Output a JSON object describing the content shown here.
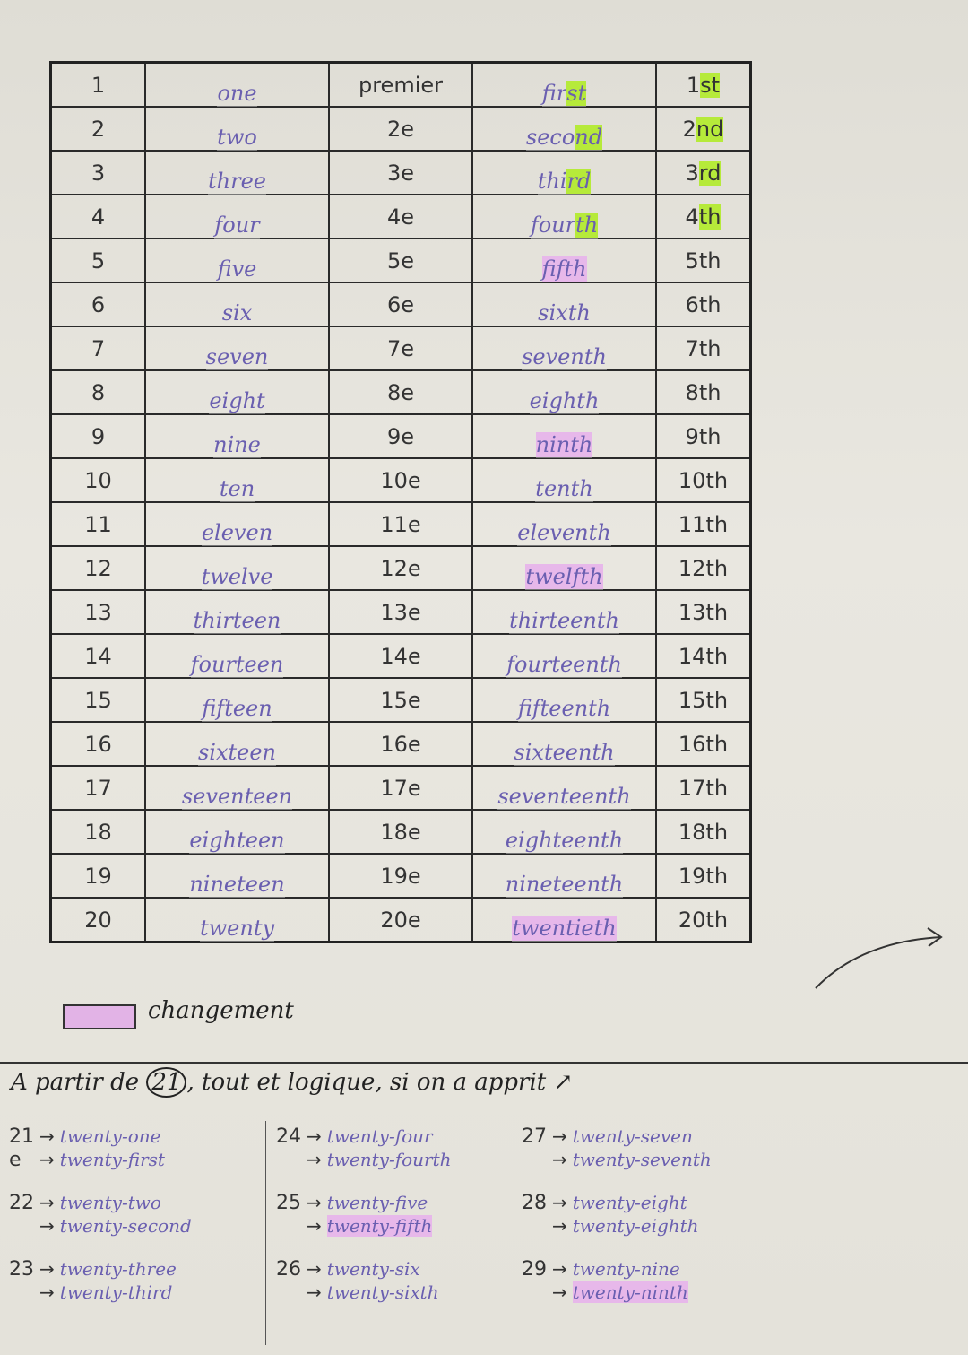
{
  "table": {
    "rows": [
      {
        "n": "1",
        "word": "one",
        "fr": "premier",
        "ord": "first",
        "ord_hl": "st",
        "ord_color": "green",
        "abbr_num": "1",
        "abbr_suf": "st",
        "abbr_hl": true
      },
      {
        "n": "2",
        "word": "two",
        "fr": "2e",
        "ord": "second",
        "ord_hl": "nd",
        "ord_color": "green",
        "abbr_num": "2",
        "abbr_suf": "nd",
        "abbr_hl": true
      },
      {
        "n": "3",
        "word": "three",
        "fr": "3e",
        "ord": "third",
        "ord_hl": "rd",
        "ord_color": "green",
        "abbr_num": "3",
        "abbr_suf": "rd",
        "abbr_hl": true
      },
      {
        "n": "4",
        "word": "four",
        "fr": "4e",
        "ord": "fourth",
        "ord_hl": "th",
        "ord_color": "green",
        "abbr_num": "4",
        "abbr_suf": "th",
        "abbr_hl": true
      },
      {
        "n": "5",
        "word": "five",
        "fr": "5e",
        "ord": "fifth",
        "ord_hl": "fifth",
        "ord_color": "purple",
        "abbr_num": "5",
        "abbr_suf": "th",
        "abbr_hl": false
      },
      {
        "n": "6",
        "word": "six",
        "fr": "6e",
        "ord": "sixth",
        "ord_hl": "",
        "ord_color": "",
        "abbr_num": "6",
        "abbr_suf": "th",
        "abbr_hl": false
      },
      {
        "n": "7",
        "word": "seven",
        "fr": "7e",
        "ord": "seventh",
        "ord_hl": "",
        "ord_color": "",
        "abbr_num": "7",
        "abbr_suf": "th",
        "abbr_hl": false
      },
      {
        "n": "8",
        "word": "eight",
        "fr": "8e",
        "ord": "eighth",
        "ord_hl": "",
        "ord_color": "",
        "abbr_num": "8",
        "abbr_suf": "th",
        "abbr_hl": false
      },
      {
        "n": "9",
        "word": "nine",
        "fr": "9e",
        "ord": "ninth",
        "ord_hl": "ninth",
        "ord_color": "purple",
        "abbr_num": "9",
        "abbr_suf": "th",
        "abbr_hl": false
      },
      {
        "n": "10",
        "word": "ten",
        "fr": "10e",
        "ord": "tenth",
        "ord_hl": "",
        "ord_color": "",
        "abbr_num": "10",
        "abbr_suf": "th",
        "abbr_hl": false
      },
      {
        "n": "11",
        "word": "eleven",
        "fr": "11e",
        "ord": "eleventh",
        "ord_hl": "",
        "ord_color": "",
        "abbr_num": "11",
        "abbr_suf": "th",
        "abbr_hl": false
      },
      {
        "n": "12",
        "word": "twelve",
        "fr": "12e",
        "ord": "twelfth",
        "ord_hl": "twelfth",
        "ord_color": "purple",
        "abbr_num": "12",
        "abbr_suf": "th",
        "abbr_hl": false
      },
      {
        "n": "13",
        "word": "thirteen",
        "fr": "13e",
        "ord": "thirteenth",
        "ord_hl": "",
        "ord_color": "",
        "abbr_num": "13",
        "abbr_suf": "th",
        "abbr_hl": false
      },
      {
        "n": "14",
        "word": "fourteen",
        "fr": "14e",
        "ord": "fourteenth",
        "ord_hl": "",
        "ord_color": "",
        "abbr_num": "14",
        "abbr_suf": "th",
        "abbr_hl": false
      },
      {
        "n": "15",
        "word": "fifteen",
        "fr": "15e",
        "ord": "fifteenth",
        "ord_hl": "",
        "ord_color": "",
        "abbr_num": "15",
        "abbr_suf": "th",
        "abbr_hl": false
      },
      {
        "n": "16",
        "word": "sixteen",
        "fr": "16e",
        "ord": "sixteenth",
        "ord_hl": "",
        "ord_color": "",
        "abbr_num": "16",
        "abbr_suf": "th",
        "abbr_hl": false
      },
      {
        "n": "17",
        "word": "seventeen",
        "fr": "17e",
        "ord": "seventeenth",
        "ord_hl": "",
        "ord_color": "",
        "abbr_num": "17",
        "abbr_suf": "th",
        "abbr_hl": false
      },
      {
        "n": "18",
        "word": "eighteen",
        "fr": "18e",
        "ord": "eighteenth",
        "ord_hl": "",
        "ord_color": "",
        "abbr_num": "18",
        "abbr_suf": "th",
        "abbr_hl": false
      },
      {
        "n": "19",
        "word": "nineteen",
        "fr": "19e",
        "ord": "nineteenth",
        "ord_hl": "",
        "ord_color": "",
        "abbr_num": "19",
        "abbr_suf": "th",
        "abbr_hl": false
      },
      {
        "n": "20",
        "word": "twenty",
        "fr": "20e",
        "ord": "twentieth",
        "ord_hl": "twentieth",
        "ord_color": "purple",
        "abbr_num": "20",
        "abbr_suf": "th",
        "abbr_hl": false
      }
    ]
  },
  "legend": {
    "label": "changement",
    "color": "#e2b3e6"
  },
  "intro": {
    "before": "A partir de",
    "circled": "21",
    "after": ", tout et logique, si on a apprit ↗"
  },
  "colors": {
    "green_highlight": "#b6ea3a",
    "purple_highlight": "#e7b8ea",
    "ink_purple": "#6a5fb0"
  },
  "examples": [
    [
      {
        "num": "21",
        "cardinal": "twenty-one",
        "prefix2": "e",
        "ordinal": "twenty-first",
        "hl": false
      },
      {
        "num": "22",
        "cardinal": "twenty-two",
        "prefix2": "",
        "ordinal": "twenty-second",
        "hl": false
      },
      {
        "num": "23",
        "cardinal": "twenty-three",
        "prefix2": "",
        "ordinal": "twenty-third",
        "hl": false
      }
    ],
    [
      {
        "num": "24",
        "cardinal": "twenty-four",
        "prefix2": "",
        "ordinal": "twenty-fourth",
        "hl": false
      },
      {
        "num": "25",
        "cardinal": "twenty-five",
        "prefix2": "",
        "ordinal": "twenty-fifth",
        "hl": true
      },
      {
        "num": "26",
        "cardinal": "twenty-six",
        "prefix2": "",
        "ordinal": "twenty-sixth",
        "hl": false
      }
    ],
    [
      {
        "num": "27",
        "cardinal": "twenty-seven",
        "prefix2": "",
        "ordinal": "twenty-seventh",
        "hl": false
      },
      {
        "num": "28",
        "cardinal": "twenty-eight",
        "prefix2": "",
        "ordinal": "twenty-eighth",
        "hl": false
      },
      {
        "num": "29",
        "cardinal": "twenty-nine",
        "prefix2": "",
        "ordinal": "twenty-ninth",
        "hl": true
      }
    ]
  ]
}
